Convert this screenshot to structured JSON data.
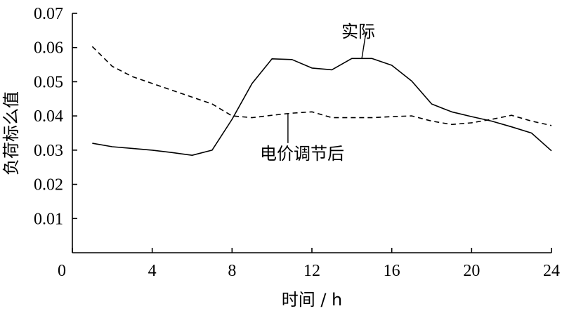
{
  "chart_data": {
    "type": "line",
    "xlabel": "时间 / h",
    "ylabel": "负荷标么值",
    "xlim": [
      0,
      24
    ],
    "ylim": [
      0,
      0.07
    ],
    "xticks": [
      "0",
      "4",
      "8",
      "12",
      "16",
      "20",
      "24"
    ],
    "yticks": [
      "0.01",
      "0.02",
      "0.03",
      "0.04",
      "0.05",
      "0.06",
      "0.07"
    ],
    "grid": false,
    "x": [
      1,
      2,
      3,
      4,
      5,
      6,
      7,
      8,
      9,
      10,
      11,
      12,
      13,
      14,
      15,
      16,
      17,
      18,
      19,
      20,
      21,
      22,
      23,
      24
    ],
    "series": [
      {
        "name": "实际",
        "line_style": "solid",
        "values": [
          0.032,
          0.031,
          0.0305,
          0.03,
          0.0293,
          0.0285,
          0.03,
          0.039,
          0.0495,
          0.0567,
          0.0565,
          0.054,
          0.0535,
          0.0568,
          0.0568,
          0.0548,
          0.0502,
          0.0435,
          0.0412,
          0.0398,
          0.0385,
          0.0368,
          0.035,
          0.0298
        ]
      },
      {
        "name": "电价调节后",
        "line_style": "dashed",
        "values": [
          0.0603,
          0.0545,
          0.0515,
          0.0495,
          0.0475,
          0.0455,
          0.0435,
          0.04,
          0.0395,
          0.0402,
          0.0408,
          0.0412,
          0.0395,
          0.0395,
          0.0395,
          0.0398,
          0.04,
          0.0385,
          0.0375,
          0.038,
          0.039,
          0.0402,
          0.0385,
          0.0372
        ]
      }
    ],
    "annotations": [
      {
        "text": "实际",
        "series": 0,
        "x": 14.5
      },
      {
        "text": "电价调节后",
        "series": 1,
        "x": 10.8
      }
    ]
  }
}
